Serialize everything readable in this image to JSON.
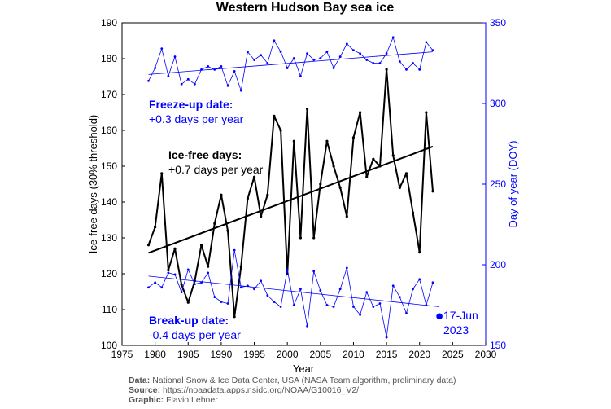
{
  "chart_data": {
    "type": "line",
    "title": "Western Hudson Bay sea ice",
    "xlabel": "Year",
    "ylabel_left": "Ice-free days (30% threshold)",
    "ylabel_right": "Day of year (DOY)",
    "xlim": [
      1975,
      2030
    ],
    "ylim_left": [
      100,
      190
    ],
    "ylim_right": [
      150,
      350
    ],
    "xticks": [
      "1975",
      "1980",
      "1985",
      "1990",
      "1995",
      "2000",
      "2005",
      "2010",
      "2015",
      "2020",
      "2025",
      "2030"
    ],
    "yticks_left": [
      "100",
      "110",
      "120",
      "130",
      "140",
      "150",
      "160",
      "170",
      "180",
      "190"
    ],
    "yticks_right": [
      "150",
      "200",
      "250",
      "300",
      "350"
    ],
    "colors": {
      "ice_free": "#000000",
      "freeze_up": "#0000ff",
      "break_up": "#0000ff"
    },
    "series": [
      {
        "name": "Ice-free days",
        "axis": "left",
        "color": "#000000",
        "x": [
          1979,
          1980,
          1981,
          1982,
          1983,
          1984,
          1985,
          1986,
          1987,
          1988,
          1989,
          1990,
          1991,
          1992,
          1993,
          1994,
          1995,
          1996,
          1997,
          1998,
          1999,
          2000,
          2001,
          2002,
          2003,
          2004,
          2005,
          2006,
          2007,
          2008,
          2009,
          2010,
          2011,
          2012,
          2013,
          2014,
          2015,
          2016,
          2017,
          2018,
          2019,
          2020,
          2021,
          2022
        ],
        "values": [
          128,
          133,
          148,
          121,
          127,
          117,
          112,
          118,
          128,
          122,
          134,
          142,
          132,
          108,
          122,
          141,
          147,
          136,
          142,
          164,
          160,
          120,
          157,
          130,
          166,
          130,
          145,
          157,
          150,
          144,
          136,
          158,
          165,
          147,
          152,
          150,
          177,
          153,
          144,
          148,
          137,
          126,
          165,
          143
        ],
        "trend": {
          "label": "+0.7 days per year",
          "start": [
            1979,
            125.8
          ],
          "end": [
            2022,
            155.5
          ]
        }
      },
      {
        "name": "Freeze-up date",
        "axis": "right",
        "color": "#0000ff",
        "x": [
          1979,
          1980,
          1981,
          1982,
          1983,
          1984,
          1985,
          1986,
          1987,
          1988,
          1989,
          1990,
          1991,
          1992,
          1993,
          1994,
          1995,
          1996,
          1997,
          1998,
          1999,
          2000,
          2001,
          2002,
          2003,
          2004,
          2005,
          2006,
          2007,
          2008,
          2009,
          2010,
          2011,
          2012,
          2013,
          2014,
          2015,
          2016,
          2017,
          2018,
          2019,
          2020,
          2021,
          2022
        ],
        "values": [
          314,
          322,
          334,
          317,
          329,
          312,
          315,
          312,
          321,
          323,
          321,
          323,
          311,
          320,
          308,
          332,
          327,
          330,
          325,
          339,
          332,
          322,
          328,
          317,
          331,
          327,
          328,
          332,
          322,
          329,
          337,
          333,
          331,
          327,
          325,
          325,
          331,
          341,
          326,
          321,
          325,
          321,
          338,
          333
        ],
        "trend": {
          "label": "+0.3 days per year",
          "start": [
            1979,
            318
          ],
          "end": [
            2022,
            332
          ]
        }
      },
      {
        "name": "Break-up date",
        "axis": "right",
        "color": "#0000ff",
        "x": [
          1979,
          1980,
          1981,
          1982,
          1983,
          1984,
          1985,
          1986,
          1987,
          1988,
          1989,
          1990,
          1991,
          1992,
          1993,
          1994,
          1995,
          1996,
          1997,
          1998,
          1999,
          2000,
          2001,
          2002,
          2003,
          2004,
          2005,
          2006,
          2007,
          2008,
          2009,
          2010,
          2011,
          2012,
          2013,
          2014,
          2015,
          2016,
          2017,
          2018,
          2019,
          2020,
          2021,
          2022
        ],
        "values": [
          186,
          189,
          186,
          195,
          194,
          183,
          197,
          188,
          189,
          195,
          180,
          177,
          176,
          209,
          186,
          187,
          185,
          190,
          181,
          177,
          174,
          197,
          175,
          185,
          162,
          196,
          184,
          175,
          174,
          185,
          198,
          174,
          169,
          183,
          174,
          176,
          155,
          187,
          180,
          170,
          185,
          191,
          175,
          189
        ],
        "trend": {
          "label": "-0.4 days per year",
          "start": [
            1979,
            193
          ],
          "end": [
            2023,
            174
          ]
        }
      }
    ],
    "highlight_point": {
      "x": 2023,
      "value_doy": 168,
      "label_line1": "17-Jun",
      "label_line2": "2023"
    },
    "annotations": {
      "freeze_title": "Freeze-up date:",
      "freeze_rate": "+0.3 days per year",
      "icefree_title": "Ice-free days:",
      "icefree_rate": "+0.7 days per year",
      "breakup_title": "Break-up date:",
      "breakup_rate": "-0.4 days per year"
    }
  },
  "footer": {
    "data_label": "Data:",
    "data_text": "National Snow & Ice Data Center, USA (NASA Team algorithm, preliminary data)",
    "source_label": "Source:",
    "source_text": "https://noaadata.apps.nsidc.org/NOAA/G10016_V2/",
    "graphic_label": "Graphic:",
    "graphic_text": "Flavio Lehner"
  }
}
